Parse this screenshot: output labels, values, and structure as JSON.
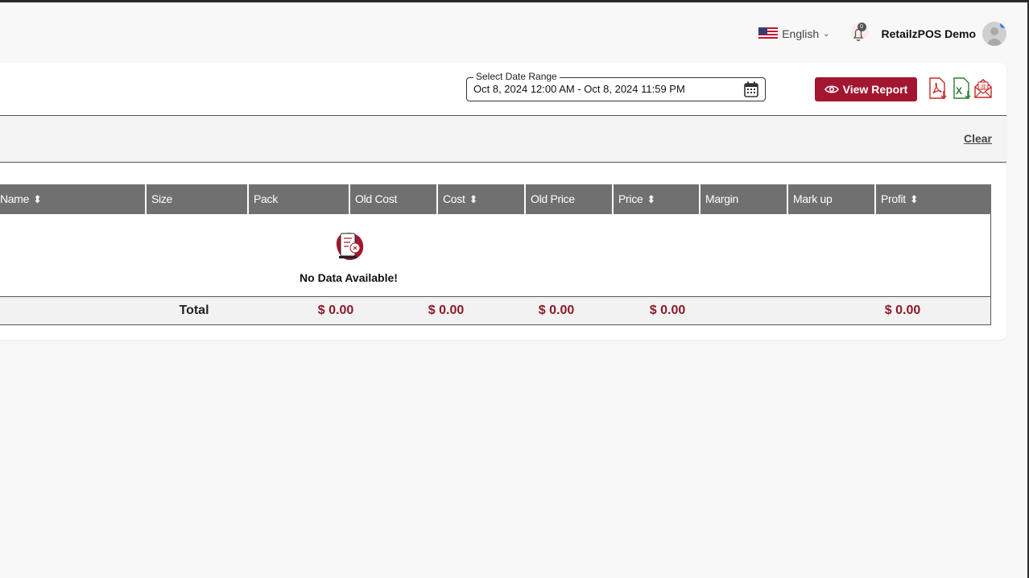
{
  "topbar": {
    "language": "English",
    "notifications": "0",
    "user": "RetailzPOS Demo"
  },
  "header": {
    "date_label": "Select Date Range",
    "date_value": "Oct 8, 2024 12:00 AM - Oct 8, 2024 11:59 PM",
    "view_report": "View Report"
  },
  "filter": {
    "clear": "Clear"
  },
  "table": {
    "columns": [
      {
        "label": "Name",
        "sortable": true
      },
      {
        "label": "Size",
        "sortable": false
      },
      {
        "label": "Pack",
        "sortable": false
      },
      {
        "label": "Old Cost",
        "sortable": false
      },
      {
        "label": "Cost",
        "sortable": true
      },
      {
        "label": "Old Price",
        "sortable": false
      },
      {
        "label": "Price",
        "sortable": true
      },
      {
        "label": "Margin",
        "sortable": false
      },
      {
        "label": "Mark up",
        "sortable": false
      },
      {
        "label": "Profit",
        "sortable": true
      }
    ],
    "empty_text": "No Data Available!",
    "totals": {
      "label": "Total",
      "old_cost": "$ 0.00",
      "cost": "$ 0.00",
      "old_price": "$ 0.00",
      "price": "$ 0.00",
      "profit": "$ 0.00"
    }
  },
  "colors": {
    "accent": "#a3162f",
    "header_bg": "#707070",
    "money": "#8b1a2b",
    "excel": "#2e7d32"
  }
}
